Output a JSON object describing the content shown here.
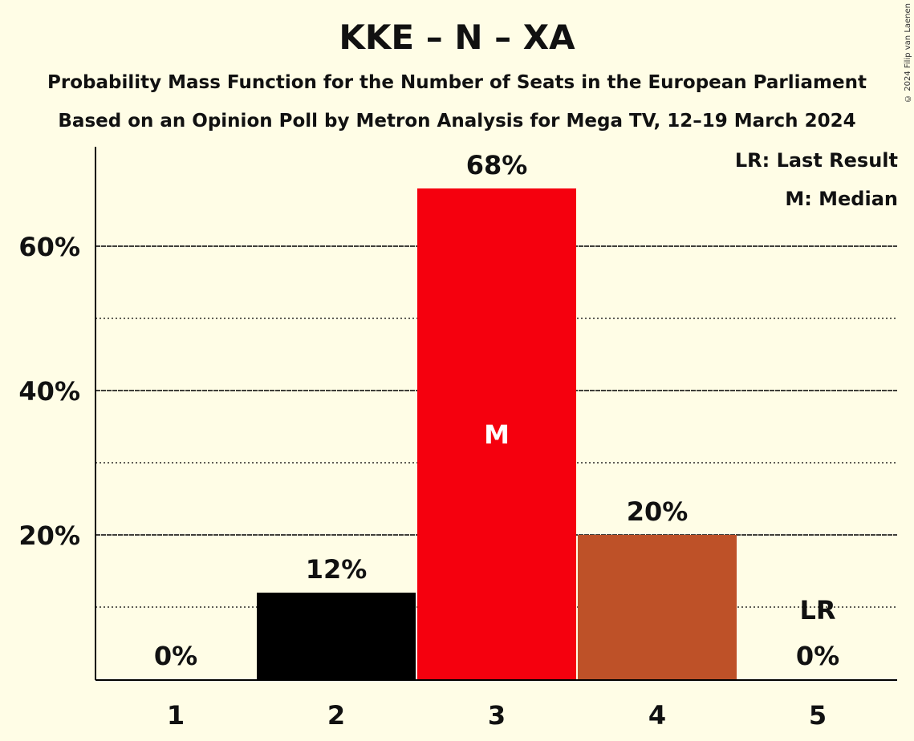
{
  "header": {
    "title": "KKE – N – XA",
    "subtitle1": "Probability Mass Function for the Number of Seats in the European Parliament",
    "subtitle2": "Based on an Opinion Poll by Metron Analysis for Mega TV, 12–19 March 2024",
    "copyright": "© 2024 Filip van Laenen"
  },
  "legend": {
    "last_result": "LR: Last Result",
    "median": "M: Median"
  },
  "colors": {
    "background": "#FFFDE6",
    "bar_2": "#000000",
    "bar_3": "#F5000E",
    "bar_4": "#BE5128"
  },
  "chart_data": {
    "type": "bar",
    "title": "KKE – N – XA",
    "categories": [
      "1",
      "2",
      "3",
      "4",
      "5"
    ],
    "values": [
      0,
      12,
      68,
      20,
      0
    ],
    "value_labels": [
      "0%",
      "12%",
      "68%",
      "20%",
      "0%"
    ],
    "bar_colors": [
      "#000000",
      "#000000",
      "#F5000E",
      "#BE5128",
      "#000000"
    ],
    "yticks": [
      20,
      40,
      60
    ],
    "ytick_labels": [
      "20%",
      "40%",
      "60%"
    ],
    "minor_gridlines": [
      10,
      30,
      50
    ],
    "ylim": [
      0,
      74
    ],
    "grid": true,
    "median_category": "3",
    "median_marker": "M",
    "last_result_category": "5",
    "last_result_marker": "LR",
    "legend_position": "top-right"
  }
}
